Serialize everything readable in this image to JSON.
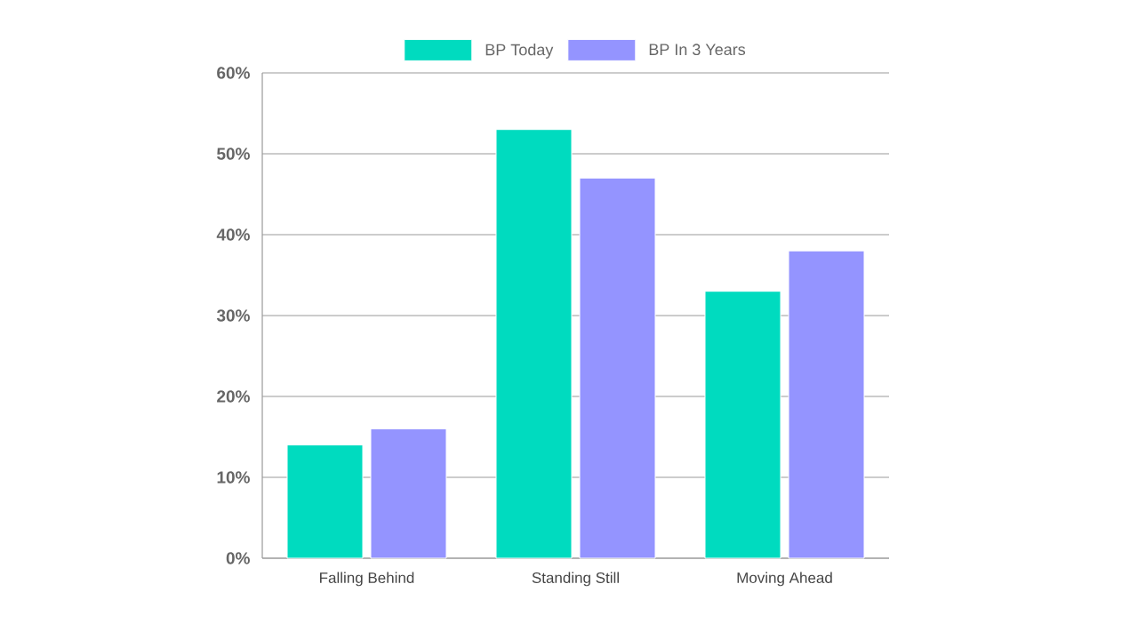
{
  "chart_data": {
    "type": "bar",
    "categories": [
      "Falling Behind",
      "Standing Still",
      "Moving Ahead"
    ],
    "series": [
      {
        "name": "BP Today",
        "color": "#00dbbf",
        "values": [
          14,
          53,
          33
        ]
      },
      {
        "name": "BP In 3 Years",
        "color": "#9494ff",
        "values": [
          16,
          47,
          38
        ]
      }
    ],
    "ylim": [
      0,
      60
    ],
    "yticks": [
      {
        "value": 0,
        "label": "0%"
      },
      {
        "value": 10,
        "label": "10%"
      },
      {
        "value": 20,
        "label": "20%"
      },
      {
        "value": 30,
        "label": "30%"
      },
      {
        "value": 40,
        "label": "40%"
      },
      {
        "value": 50,
        "label": "50%"
      },
      {
        "value": 60,
        "label": "60%"
      }
    ],
    "grid": "y",
    "legend": "top"
  }
}
